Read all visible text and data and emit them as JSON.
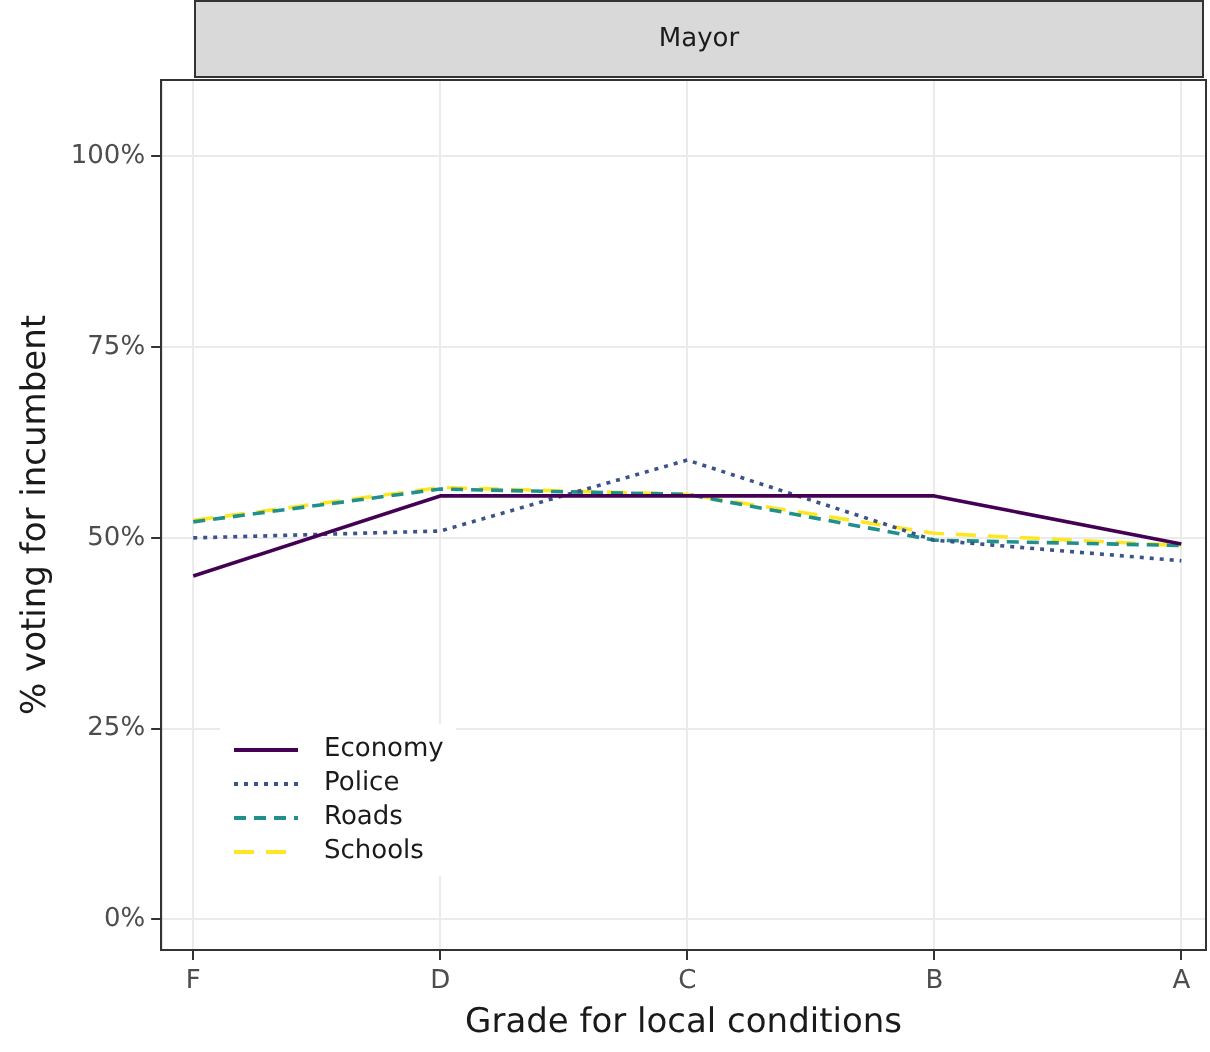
{
  "chart_data": {
    "type": "line",
    "title": "Mayor",
    "xlabel": "Grade for local conditions",
    "ylabel": "% voting for incumbent",
    "categories": [
      "F",
      "D",
      "C",
      "B",
      "A"
    ],
    "series": [
      {
        "name": "Economy",
        "color": "#440154",
        "line_style": "solid",
        "values": [
          45,
          55.5,
          55.5,
          55.5,
          49.2
        ]
      },
      {
        "name": "Police",
        "color": "#3b528b",
        "line_style": "dotted",
        "values": [
          50,
          50.9,
          60.2,
          49.7,
          47
        ]
      },
      {
        "name": "Roads",
        "color": "#21908c",
        "line_style": "dashed",
        "values": [
          52.1,
          56.4,
          55.7,
          49.7,
          49
        ]
      },
      {
        "name": "Schools",
        "color": "#fde725",
        "line_style": "longdash",
        "values": [
          52.3,
          56.6,
          55.7,
          50.6,
          49
        ]
      }
    ],
    "ylim": [
      -4,
      110
    ],
    "yticks": [
      {
        "value": 0,
        "label": "0%"
      },
      {
        "value": 25,
        "label": "25%"
      },
      {
        "value": 50,
        "label": "50%"
      },
      {
        "value": 75,
        "label": "75%"
      },
      {
        "value": 100,
        "label": "100%"
      }
    ],
    "grid": true,
    "legend": "bottom left",
    "marker": "none"
  }
}
